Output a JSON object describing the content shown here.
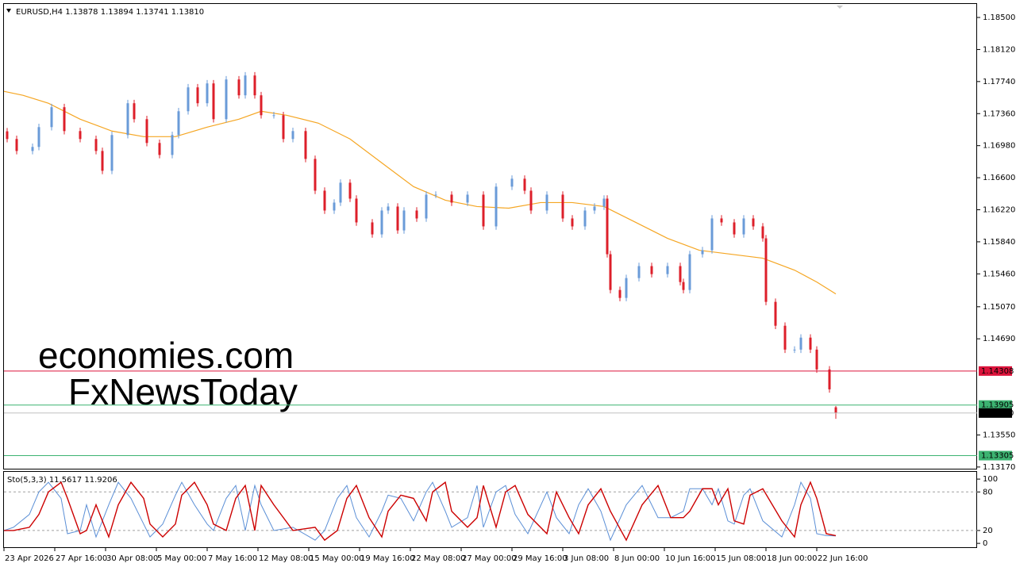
{
  "chart_data": [
    {
      "type": "candlestick",
      "title": "EURUSD,H4  1.13878 1.13894 1.13741 1.13810",
      "watermarks": [
        "economies.com",
        "FxNewsToday"
      ],
      "up_color": "#6a9bd8",
      "down_color": "#dd1f2a",
      "xlim": [
        0,
        306
      ],
      "ylim": [
        1.1315,
        1.1866
      ],
      "yticks": [
        {
          "value": 1.185,
          "label": "1.18500"
        },
        {
          "value": 1.1812,
          "label": "1.18120"
        },
        {
          "value": 1.1774,
          "label": "1.17740"
        },
        {
          "value": 1.1736,
          "label": "1.17360"
        },
        {
          "value": 1.1698,
          "label": "1.16980"
        },
        {
          "value": 1.166,
          "label": "1.16600"
        },
        {
          "value": 1.1622,
          "label": "1.16220"
        },
        {
          "value": 1.1584,
          "label": "1.15840"
        },
        {
          "value": 1.1546,
          "label": "1.15460"
        },
        {
          "value": 1.1507,
          "label": "1.15070"
        },
        {
          "value": 1.1469,
          "label": "1.14690"
        },
        {
          "value": 1.1355,
          "label": "1.13550"
        },
        {
          "value": 1.1317,
          "label": "1.13170"
        }
      ],
      "levels": [
        {
          "value": 1.14308,
          "color": "#dc143c",
          "box_color": "#dc143c"
        },
        {
          "value": 1.13905,
          "color": "#3cb371",
          "box_color": "#3cb371"
        },
        {
          "value": 1.1381,
          "label": "1.13810",
          "color": "#c0c0c0",
          "box_color": "#000000"
        },
        {
          "value": 1.13305,
          "color": "#3cb371",
          "box_color": "#3cb371"
        }
      ],
      "x": [
        1,
        4,
        9,
        11,
        15,
        19,
        24,
        29,
        31,
        34,
        39,
        41,
        45,
        49,
        53,
        55,
        58,
        61,
        64,
        66,
        70,
        74,
        76,
        79,
        81,
        85,
        88,
        91,
        95,
        98,
        101,
        104,
        106,
        109,
        111,
        116,
        119,
        121,
        124,
        126,
        130,
        133,
        136,
        141,
        146,
        151,
        155,
        160,
        164,
        166,
        171,
        176,
        179,
        183,
        186,
        189,
        190,
        191,
        194,
        196,
        200,
        204,
        209,
        213,
        214,
        216,
        220,
        223,
        226,
        230,
        233,
        236,
        239,
        240,
        243,
        246,
        249,
        251,
        254,
        256,
        260,
        262
      ],
      "open": [
        1.1715,
        1.17059,
        1.16917,
        1.16965,
        1.172,
        1.17436,
        1.17153,
        1.17059,
        1.16917,
        1.16682,
        1.17106,
        1.17483,
        1.17294,
        1.17012,
        1.1687,
        1.17106,
        1.17388,
        1.17671,
        1.17483,
        1.17718,
        1.17294,
        1.17765,
        1.17577,
        1.17812,
        1.17577,
        1.17341,
        1.17341,
        1.17059,
        1.17153,
        1.16823,
        1.16446,
        1.16211,
        1.16305,
        1.16541,
        1.16352,
        1.1607,
        1.15928,
        1.16211,
        1.16258,
        1.15975,
        1.16211,
        1.16117,
        1.16399,
        1.16399,
        1.16305,
        1.16399,
        1.16023,
        1.16494,
        1.16588,
        1.16446,
        1.16211,
        1.16399,
        1.16117,
        1.16023,
        1.16211,
        1.16258,
        1.16352,
        1.15693,
        1.15269,
        1.15175,
        1.1541,
        1.15552,
        1.15457,
        1.15552,
        1.15363,
        1.15269,
        1.15693,
        1.1574,
        1.16117,
        1.1607,
        1.15928,
        1.16117,
        1.16023,
        1.15881,
        1.15128,
        1.14845,
        1.14562,
        1.14562,
        1.14704,
        1.14562,
        1.14327,
        1.13878
      ],
      "high": [
        1.1719,
        1.17099,
        1.17005,
        1.1724,
        1.17476,
        1.17476,
        1.17193,
        1.17099,
        1.16957,
        1.17146,
        1.17523,
        1.17523,
        1.17334,
        1.17052,
        1.17146,
        1.17428,
        1.17711,
        1.17711,
        1.17758,
        1.17758,
        1.17805,
        1.17805,
        1.17852,
        1.17852,
        1.17617,
        1.17381,
        1.17381,
        1.17193,
        1.17193,
        1.16863,
        1.16486,
        1.16345,
        1.16581,
        1.16581,
        1.16392,
        1.1611,
        1.16251,
        1.16298,
        1.16298,
        1.16251,
        1.16251,
        1.16439,
        1.16439,
        1.16439,
        1.16439,
        1.16439,
        1.16534,
        1.16628,
        1.16628,
        1.16486,
        1.16439,
        1.16439,
        1.16157,
        1.16251,
        1.16298,
        1.16392,
        1.16392,
        1.15733,
        1.15309,
        1.1545,
        1.15592,
        1.15592,
        1.15592,
        1.15592,
        1.15403,
        1.15733,
        1.1578,
        1.16157,
        1.16157,
        1.1611,
        1.16157,
        1.16157,
        1.16063,
        1.15921,
        1.15168,
        1.14885,
        1.14602,
        1.14744,
        1.14744,
        1.14602,
        1.14367,
        1.13894
      ],
      "low": [
        1.17019,
        1.16877,
        1.16877,
        1.16925,
        1.1716,
        1.17113,
        1.17019,
        1.16877,
        1.16642,
        1.16642,
        1.17066,
        1.17254,
        1.16972,
        1.1683,
        1.1683,
        1.17066,
        1.17348,
        1.17443,
        1.17443,
        1.17254,
        1.17254,
        1.17537,
        1.17537,
        1.17537,
        1.17301,
        1.17301,
        1.17019,
        1.17019,
        1.16783,
        1.16406,
        1.16171,
        1.16171,
        1.16265,
        1.16312,
        1.1603,
        1.15888,
        1.15888,
        1.16171,
        1.15935,
        1.15935,
        1.16077,
        1.16077,
        1.16359,
        1.16265,
        1.16265,
        1.15983,
        1.15983,
        1.16454,
        1.16406,
        1.16171,
        1.16171,
        1.16077,
        1.15983,
        1.15983,
        1.16171,
        1.16218,
        1.15653,
        1.15229,
        1.15135,
        1.15135,
        1.1537,
        1.15417,
        1.15417,
        1.15323,
        1.15229,
        1.15229,
        1.15653,
        1.157,
        1.1603,
        1.15888,
        1.15888,
        1.15983,
        1.15841,
        1.15088,
        1.14805,
        1.14522,
        1.14522,
        1.14522,
        1.14522,
        1.14287,
        1.14051,
        1.13741
      ],
      "close": [
        1.17059,
        1.16917,
        1.16965,
        1.172,
        1.17436,
        1.17153,
        1.17059,
        1.16917,
        1.16682,
        1.17106,
        1.17483,
        1.17294,
        1.17012,
        1.1687,
        1.17106,
        1.17388,
        1.17671,
        1.17483,
        1.17718,
        1.17294,
        1.17765,
        1.17577,
        1.17812,
        1.17577,
        1.17341,
        1.17341,
        1.17059,
        1.17153,
        1.16823,
        1.16446,
        1.16211,
        1.16305,
        1.16541,
        1.16352,
        1.1607,
        1.15928,
        1.16211,
        1.16258,
        1.15975,
        1.16211,
        1.16117,
        1.16399,
        1.16399,
        1.16305,
        1.16399,
        1.16023,
        1.16494,
        1.16588,
        1.16446,
        1.16211,
        1.16399,
        1.16117,
        1.16023,
        1.16211,
        1.16258,
        1.16352,
        1.15693,
        1.15269,
        1.15175,
        1.1541,
        1.15552,
        1.15457,
        1.15552,
        1.15363,
        1.15269,
        1.15693,
        1.1574,
        1.16117,
        1.1607,
        1.15928,
        1.16117,
        1.16023,
        1.15881,
        1.15128,
        1.14845,
        1.14562,
        1.14562,
        1.14704,
        1.14562,
        1.14327,
        1.14091,
        1.1381
      ],
      "ma": {
        "color": "#f5a623",
        "x": [
          0,
          6,
          14,
          24,
          34,
          44,
          54,
          64,
          74,
          81,
          89,
          99,
          109,
          119,
          129,
          139,
          149,
          159,
          169,
          179,
          189,
          199,
          209,
          219,
          229,
          239,
          249,
          256,
          262
        ],
        "values": [
          1.17624,
          1.17577,
          1.17483,
          1.17294,
          1.17153,
          1.17087,
          1.17087,
          1.172,
          1.17294,
          1.17388,
          1.17341,
          1.17247,
          1.17059,
          1.16776,
          1.16494,
          1.16333,
          1.16258,
          1.16239,
          1.16305,
          1.16305,
          1.16258,
          1.1607,
          1.15881,
          1.1574,
          1.15693,
          1.15646,
          1.15504,
          1.15363,
          1.15222
        ]
      }
    },
    {
      "type": "line",
      "title": "Sto(5,3,3) 11.5617 11.9206",
      "xlim": [
        0,
        306
      ],
      "ylim": [
        -6,
        110
      ],
      "yticks": [
        100,
        80,
        20,
        0
      ],
      "levels": [
        80,
        20
      ],
      "xticks": [
        {
          "value": 0,
          "label": "23 Apr 2026"
        },
        {
          "value": 16,
          "label": "27 Apr 16:00"
        },
        {
          "value": 32,
          "label": "30 Apr 08:00"
        },
        {
          "value": 48,
          "label": "5 May 00:00"
        },
        {
          "value": 64,
          "label": "7 May 16:00"
        },
        {
          "value": 80,
          "label": "12 May 08:00"
        },
        {
          "value": 96,
          "label": "15 May 00:00"
        },
        {
          "value": 112,
          "label": "19 May 16:00"
        },
        {
          "value": 128,
          "label": "22 May 08:00"
        },
        {
          "value": 144,
          "label": "27 May 00:00"
        },
        {
          "value": 160,
          "label": "29 May 16:00"
        },
        {
          "value": 176,
          "label": "3 Jun 08:00"
        },
        {
          "value": 192,
          "label": "8 Jun 00:00"
        },
        {
          "value": 208,
          "label": "10 Jun 16:00"
        },
        {
          "value": 224,
          "label": "15 Jun 08:00"
        },
        {
          "value": 240,
          "label": "18 Jun 00:00"
        },
        {
          "value": 256,
          "label": "22 Jun 16:00"
        }
      ],
      "x": [
        0,
        3,
        8,
        11,
        14,
        18,
        20,
        24,
        26,
        29,
        33,
        36,
        40,
        44,
        46,
        50,
        54,
        56,
        60,
        64,
        66,
        70,
        73,
        76,
        79,
        81,
        85,
        91,
        98,
        101,
        105,
        108,
        111,
        115,
        119,
        121,
        125,
        129,
        133,
        135,
        139,
        141,
        146,
        149,
        151,
        155,
        158,
        161,
        165,
        171,
        174,
        178,
        181,
        184,
        188,
        191,
        196,
        201,
        206,
        210,
        214,
        216,
        220,
        223,
        225,
        228,
        230,
        233,
        235,
        239,
        245,
        249,
        251,
        254,
        256,
        259,
        262
      ],
      "series": [
        {
          "color": "#5b8fd6",
          "values": [
            20,
            25,
            45,
            80,
            95,
            70,
            15,
            20,
            60,
            10,
            60,
            95,
            70,
            30,
            10,
            30,
            75,
            95,
            60,
            30,
            20,
            70,
            90,
            20,
            90,
            60,
            20,
            25,
            5,
            20,
            70,
            90,
            40,
            10,
            50,
            75,
            70,
            35,
            80,
            95,
            50,
            25,
            40,
            90,
            25,
            80,
            90,
            45,
            15,
            80,
            40,
            15,
            60,
            85,
            50,
            5,
            60,
            90,
            40,
            40,
            50,
            85,
            85,
            60,
            85,
            35,
            30,
            75,
            85,
            35,
            10,
            60,
            95,
            70,
            15,
            12,
            11.5617
          ]
        },
        {
          "color": "#cc0000",
          "values": [
            20,
            20,
            25,
            45,
            80,
            95,
            70,
            15,
            20,
            60,
            10,
            60,
            95,
            70,
            30,
            10,
            30,
            75,
            95,
            60,
            30,
            20,
            70,
            90,
            20,
            90,
            60,
            20,
            25,
            5,
            20,
            70,
            90,
            40,
            10,
            50,
            75,
            70,
            35,
            80,
            95,
            50,
            25,
            40,
            90,
            25,
            80,
            90,
            45,
            15,
            80,
            40,
            15,
            60,
            85,
            50,
            5,
            60,
            90,
            40,
            40,
            50,
            85,
            85,
            60,
            85,
            35,
            30,
            75,
            85,
            35,
            10,
            60,
            95,
            70,
            15,
            11.9206
          ]
        }
      ]
    }
  ]
}
